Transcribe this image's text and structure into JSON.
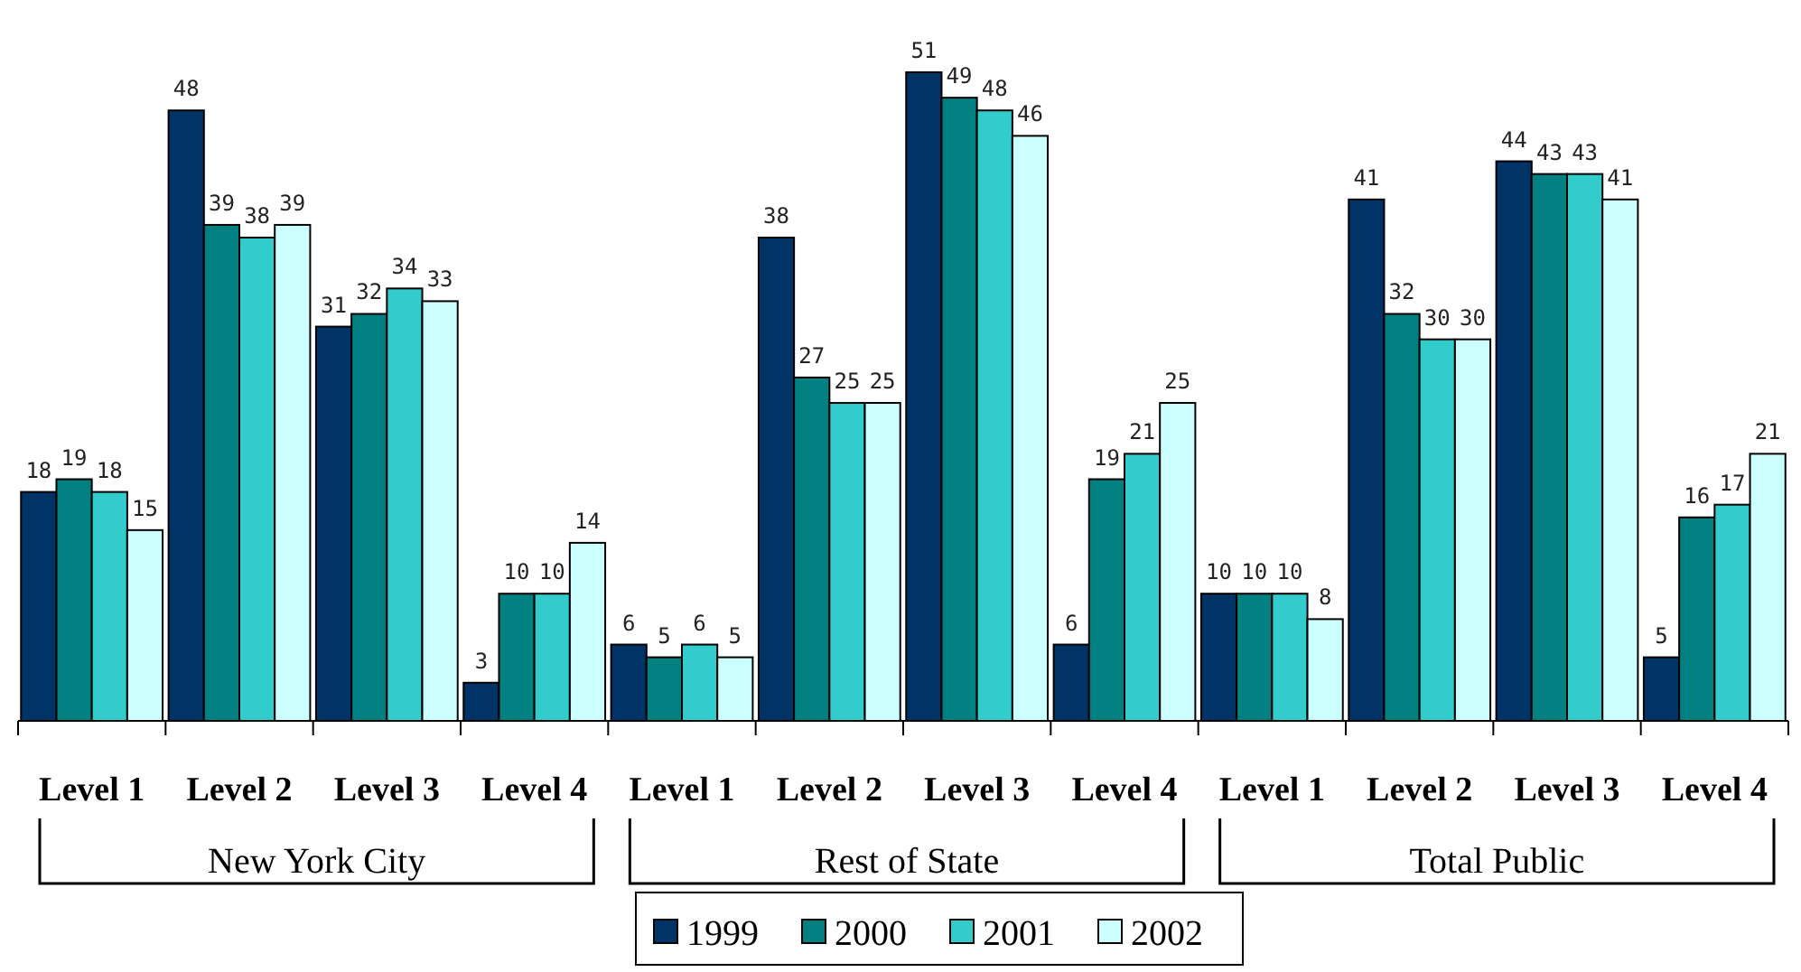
{
  "chart_data": {
    "type": "bar",
    "categories": [
      "Level 1",
      "Level 2",
      "Level 3",
      "Level 4",
      "Level 1",
      "Level 2",
      "Level 3",
      "Level 4",
      "Level 1",
      "Level 2",
      "Level 3",
      "Level 4"
    ],
    "series": [
      {
        "name": "1999",
        "color": "#003366",
        "values": [
          18,
          48,
          31,
          3,
          6,
          38,
          51,
          6,
          10,
          41,
          44,
          5
        ]
      },
      {
        "name": "2000",
        "color": "#008080",
        "values": [
          19,
          39,
          32,
          10,
          5,
          27,
          49,
          19,
          10,
          32,
          43,
          16
        ]
      },
      {
        "name": "2001",
        "color": "#33cccc",
        "values": [
          18,
          38,
          34,
          10,
          6,
          25,
          48,
          21,
          10,
          30,
          43,
          17
        ]
      },
      {
        "name": "2002",
        "color": "#ccffff",
        "values": [
          15,
          39,
          33,
          14,
          5,
          25,
          46,
          25,
          8,
          30,
          41,
          21
        ]
      }
    ],
    "annotations": [
      "New York City",
      "Rest of State",
      "Total Public"
    ],
    "data_labels": true,
    "legend": "bottom",
    "grid": false
  }
}
